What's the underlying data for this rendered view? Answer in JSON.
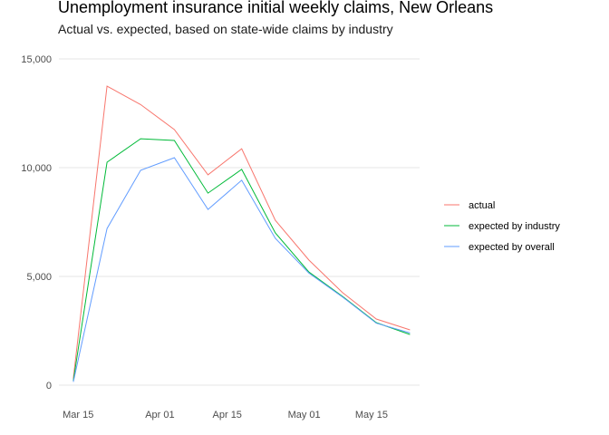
{
  "chart_data": {
    "type": "line",
    "title": "Unemployment insurance initial weekly claims, New Orleans",
    "subtitle": "Actual vs. expected, based on state-wide claims by industry",
    "xlabel": "",
    "ylabel": "",
    "x": [
      "2020-03-14",
      "2020-03-21",
      "2020-03-28",
      "2020-04-04",
      "2020-04-11",
      "2020-04-18",
      "2020-04-25",
      "2020-05-02",
      "2020-05-09",
      "2020-05-16",
      "2020-05-23"
    ],
    "x_ticks": [
      {
        "date": "2020-03-15",
        "label": "Mar 15"
      },
      {
        "date": "2020-04-01",
        "label": "Apr 01"
      },
      {
        "date": "2020-04-15",
        "label": "Apr 15"
      },
      {
        "date": "2020-05-01",
        "label": "May 01"
      },
      {
        "date": "2020-05-15",
        "label": "May 15"
      }
    ],
    "y_ticks": [
      {
        "value": 0,
        "label": "0"
      },
      {
        "value": 5000,
        "label": "5,000"
      },
      {
        "value": 10000,
        "label": "10,000"
      },
      {
        "value": 15000,
        "label": "15,000"
      }
    ],
    "ylim": [
      0,
      15000
    ],
    "xlim": [
      "2020-03-11",
      "2020-05-25"
    ],
    "grid": true,
    "legend_position": "right",
    "series": [
      {
        "name": "actual",
        "color": "#F8766D",
        "values": [
          300,
          13750,
          12900,
          11750,
          9670,
          10870,
          7580,
          5750,
          4250,
          3040,
          2540
        ]
      },
      {
        "name": "expected by industry",
        "color": "#00BA38",
        "values": [
          200,
          10250,
          11330,
          11250,
          8830,
          9920,
          7000,
          5200,
          4080,
          2875,
          2330
        ]
      },
      {
        "name": "expected by overall",
        "color": "#619CFF",
        "values": [
          150,
          7200,
          9880,
          10460,
          8080,
          9420,
          6750,
          5150,
          4050,
          2850,
          2400
        ]
      }
    ]
  }
}
